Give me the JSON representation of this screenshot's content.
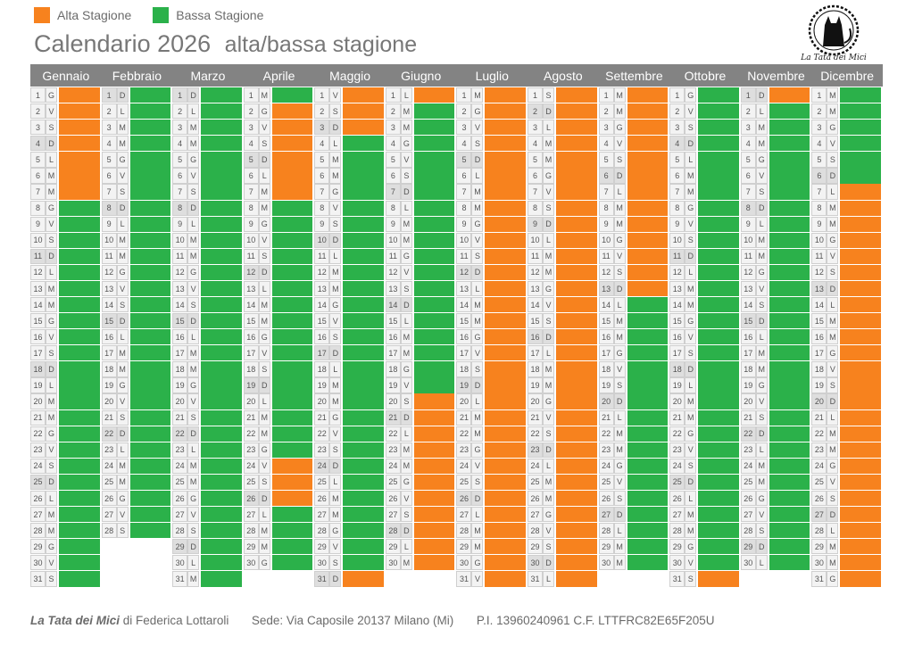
{
  "legend": {
    "alta_label": "Alta Stagione",
    "bassa_label": "Bassa Stagione",
    "alta_color": "#f7821e",
    "bassa_color": "#2bb14a"
  },
  "title": {
    "main": "Calendario 2026",
    "sub": "alta/bassa stagione"
  },
  "logo": {
    "text": "La Tata dei Mici",
    "icon": "cat-silhouette-icon"
  },
  "months": [
    {
      "name": "Gennaio",
      "start_weekday": 4,
      "days": 31,
      "alta_days": [
        1,
        2,
        3,
        4,
        5,
        6,
        7
      ]
    },
    {
      "name": "Febbraio",
      "start_weekday": 0,
      "days": 28,
      "alta_days": []
    },
    {
      "name": "Marzo",
      "start_weekday": 0,
      "days": 31,
      "alta_days": []
    },
    {
      "name": "Aprile",
      "start_weekday": 3,
      "days": 30,
      "alta_days": [
        2,
        3,
        4,
        5,
        6,
        7,
        24,
        25,
        26
      ]
    },
    {
      "name": "Maggio",
      "start_weekday": 5,
      "days": 31,
      "alta_days": [
        1,
        2,
        3,
        31
      ]
    },
    {
      "name": "Giugno",
      "start_weekday": 1,
      "days": 30,
      "alta_days": [
        1,
        20,
        21,
        22,
        23,
        24,
        25,
        26,
        27,
        28,
        29,
        30
      ]
    },
    {
      "name": "Luglio",
      "start_weekday": 3,
      "days": 31,
      "alta_days": [
        1,
        2,
        3,
        4,
        5,
        6,
        7,
        8,
        9,
        10,
        11,
        12,
        13,
        14,
        15,
        16,
        17,
        18,
        19,
        20,
        21,
        22,
        23,
        24,
        25,
        26,
        27,
        28,
        29,
        30,
        31
      ]
    },
    {
      "name": "Agosto",
      "start_weekday": 6,
      "days": 31,
      "alta_days": [
        1,
        2,
        3,
        4,
        5,
        6,
        7,
        8,
        9,
        10,
        11,
        12,
        13,
        14,
        15,
        16,
        17,
        18,
        19,
        20,
        21,
        22,
        23,
        24,
        25,
        26,
        27,
        28,
        29,
        30,
        31
      ]
    },
    {
      "name": "Settembre",
      "start_weekday": 2,
      "days": 30,
      "alta_days": [
        1,
        2,
        3,
        4,
        5,
        6,
        7,
        8,
        9,
        10,
        11,
        12,
        13
      ]
    },
    {
      "name": "Ottobre",
      "start_weekday": 4,
      "days": 31,
      "alta_days": [
        31
      ]
    },
    {
      "name": "Novembre",
      "start_weekday": 0,
      "days": 30,
      "alta_days": [
        1
      ]
    },
    {
      "name": "Dicembre",
      "start_weekday": 2,
      "days": 31,
      "alta_days": [
        7,
        8,
        9,
        10,
        11,
        12,
        13,
        14,
        15,
        16,
        17,
        18,
        19,
        20,
        21,
        22,
        23,
        24,
        25,
        26,
        27,
        28,
        29,
        30,
        31
      ]
    }
  ],
  "weekday_letters": [
    "D",
    "L",
    "M",
    "M",
    "G",
    "V",
    "S"
  ],
  "footer": {
    "brand": "La Tata dei Mici",
    "author": "di Federica Lottaroli",
    "address": "Sede: Via Caposile 20137 Milano (Mi)",
    "tax": "P.I. 13960240961  C.F.  LTTFRC82E65F205U"
  }
}
